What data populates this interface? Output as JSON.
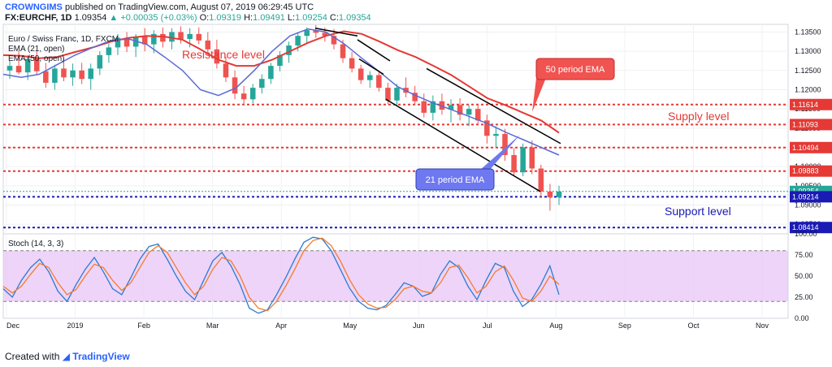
{
  "header": {
    "publisher": "CROWNGIMS",
    "published_text": "published on TradingView.com, August 07, 2019 06:29:45 UTC",
    "symbol": "FX:EURCHF, 1D",
    "last": "1.09354",
    "change": "+0.00035 (+0.03%)",
    "o_label": "O:",
    "open": "1.09319",
    "h_label": "H:",
    "high": "1.09491",
    "l_label": "L:",
    "low": "1.09254",
    "c_label": "C:",
    "close": "1.09354"
  },
  "legend": {
    "line1": "Euro / Swiss Franc, 1D, FXCM",
    "line2": "EMA (21, open)",
    "line3": "EMA (50, open)"
  },
  "annotations": {
    "resistance": "Resistance level",
    "supply": "Supply level",
    "support": "Support level",
    "ema50": "50 period EMA",
    "ema21": "21 period EMA"
  },
  "stoch_label": "Stoch (14, 3, 3)",
  "footer": {
    "created_with": "Created with",
    "brand": "TradingView"
  },
  "colors": {
    "up": "#26a69a",
    "down": "#ef5350",
    "ema21": "#5b6bd5",
    "ema50": "#e53935",
    "resistance": "#e53935",
    "support": "#1a1ab5",
    "stoch_k": "#2a7bd1",
    "stoch_d": "#f57c2c",
    "stoch_band": "#e8c5f7",
    "ema50_callout": "#f05350",
    "ema21_callout": "#6e78f0"
  },
  "chart_data": {
    "type": "candlestick",
    "x_ticks": [
      "Dec",
      "2019",
      "Feb",
      "Mar",
      "Apr",
      "May",
      "Jun",
      "Jul",
      "Aug",
      "Sep",
      "Oct",
      "Nov"
    ],
    "price_axis": {
      "ticks": [
        "1.13500",
        "1.13000",
        "1.12500",
        "1.12000",
        "1.11500",
        "1.11000",
        "1.10500",
        "1.10000",
        "1.09500",
        "1.09000",
        "1.08500"
      ],
      "ylim": [
        1.0825,
        1.137
      ]
    },
    "horizontal_levels": [
      {
        "label": "1.11614",
        "value": 1.11614,
        "kind": "resistance"
      },
      {
        "label": "1.11093",
        "value": 1.11093,
        "kind": "resistance"
      },
      {
        "label": "1.10494",
        "value": 1.10494,
        "kind": "resistance"
      },
      {
        "label": "1.09883",
        "value": 1.09883,
        "kind": "resistance"
      },
      {
        "label": "1.09354",
        "value": 1.09354,
        "kind": "last"
      },
      {
        "label": "1.09214",
        "value": 1.09214,
        "kind": "support"
      },
      {
        "label": "1.08414",
        "value": 1.08414,
        "kind": "support"
      }
    ],
    "ema50": [
      1.129,
      1.1288,
      1.1282,
      1.1285,
      1.1298,
      1.131,
      1.1325,
      1.1335,
      1.134,
      1.1338,
      1.133,
      1.1305,
      1.1278,
      1.1262,
      1.1262,
      1.1278,
      1.13,
      1.1322,
      1.134,
      1.1352,
      1.1345,
      1.1325,
      1.1303,
      1.1285,
      1.1262,
      1.1238,
      1.1208,
      1.1178,
      1.116,
      1.114,
      1.112,
      1.1088
    ],
    "ema21": [
      1.124,
      1.1232,
      1.124,
      1.1265,
      1.129,
      1.131,
      1.1328,
      1.1332,
      1.1318,
      1.1285,
      1.125,
      1.12,
      1.1185,
      1.1205,
      1.125,
      1.13,
      1.134,
      1.1358,
      1.135,
      1.132,
      1.1282,
      1.1246,
      1.1208,
      1.1185,
      1.1165,
      1.1148,
      1.113,
      1.1112,
      1.109,
      1.107,
      1.105,
      1.103
    ],
    "candles": [
      [
        1.125,
        1.1275,
        1.1228,
        1.1262
      ],
      [
        1.1262,
        1.13,
        1.124,
        1.1245
      ],
      [
        1.1245,
        1.129,
        1.1225,
        1.128
      ],
      [
        1.128,
        1.13,
        1.1238,
        1.1248
      ],
      [
        1.1248,
        1.127,
        1.1205,
        1.1218
      ],
      [
        1.1218,
        1.1265,
        1.12,
        1.1255
      ],
      [
        1.1255,
        1.1282,
        1.1222,
        1.1232
      ],
      [
        1.1232,
        1.1268,
        1.121,
        1.125
      ],
      [
        1.125,
        1.127,
        1.1215,
        1.1228
      ],
      [
        1.1228,
        1.1268,
        1.12,
        1.1255
      ],
      [
        1.1255,
        1.13,
        1.1238,
        1.129
      ],
      [
        1.129,
        1.132,
        1.127,
        1.131
      ],
      [
        1.131,
        1.1345,
        1.129,
        1.1335
      ],
      [
        1.1335,
        1.135,
        1.1298,
        1.1312
      ],
      [
        1.1312,
        1.1345,
        1.1285,
        1.1338
      ],
      [
        1.1338,
        1.136,
        1.13,
        1.1318
      ],
      [
        1.1318,
        1.1355,
        1.1295,
        1.1345
      ],
      [
        1.1345,
        1.1362,
        1.131,
        1.1325
      ],
      [
        1.1325,
        1.136,
        1.1305,
        1.135
      ],
      [
        1.135,
        1.1365,
        1.132,
        1.1332
      ],
      [
        1.1332,
        1.136,
        1.131,
        1.1345
      ],
      [
        1.1345,
        1.1362,
        1.1318,
        1.1328
      ],
      [
        1.1328,
        1.135,
        1.1295,
        1.1305
      ],
      [
        1.1305,
        1.133,
        1.1255,
        1.1268
      ],
      [
        1.1268,
        1.1285,
        1.122,
        1.1232
      ],
      [
        1.1232,
        1.125,
        1.1175,
        1.119
      ],
      [
        1.119,
        1.121,
        1.1162,
        1.1175
      ],
      [
        1.1175,
        1.1215,
        1.1165,
        1.1205
      ],
      [
        1.1205,
        1.124,
        1.119,
        1.1228
      ],
      [
        1.1228,
        1.127,
        1.1215,
        1.1262
      ],
      [
        1.1262,
        1.13,
        1.1248,
        1.129
      ],
      [
        1.129,
        1.1325,
        1.127,
        1.1315
      ],
      [
        1.1315,
        1.135,
        1.13,
        1.134
      ],
      [
        1.134,
        1.1362,
        1.1322,
        1.1355
      ],
      [
        1.1355,
        1.1368,
        1.1335,
        1.1348
      ],
      [
        1.1348,
        1.1362,
        1.1325,
        1.134
      ],
      [
        1.134,
        1.1358,
        1.1305,
        1.1318
      ],
      [
        1.1318,
        1.133,
        1.127,
        1.1282
      ],
      [
        1.1282,
        1.1298,
        1.1245,
        1.1255
      ],
      [
        1.1255,
        1.1265,
        1.1215,
        1.1225
      ],
      [
        1.1225,
        1.1248,
        1.1205,
        1.1238
      ],
      [
        1.1238,
        1.125,
        1.1195,
        1.1205
      ],
      [
        1.1205,
        1.1218,
        1.1162,
        1.1172
      ],
      [
        1.1172,
        1.1215,
        1.116,
        1.1205
      ],
      [
        1.1205,
        1.1232,
        1.118,
        1.1192
      ],
      [
        1.1192,
        1.121,
        1.116,
        1.117
      ],
      [
        1.117,
        1.119,
        1.1128,
        1.114
      ],
      [
        1.114,
        1.1185,
        1.112,
        1.117
      ],
      [
        1.117,
        1.119,
        1.1135,
        1.1148
      ],
      [
        1.1148,
        1.1175,
        1.1115,
        1.116
      ],
      [
        1.116,
        1.1178,
        1.112,
        1.1135
      ],
      [
        1.1135,
        1.116,
        1.1105,
        1.115
      ],
      [
        1.115,
        1.1162,
        1.1108,
        1.112
      ],
      [
        1.112,
        1.1135,
        1.106,
        1.108
      ],
      [
        1.108,
        1.1105,
        1.105,
        1.1085
      ],
      [
        1.1085,
        1.1098,
        1.1015,
        1.103
      ],
      [
        1.103,
        1.1048,
        1.0975,
        1.0985
      ],
      [
        1.0985,
        1.106,
        1.0975,
        1.105
      ],
      [
        1.105,
        1.1068,
        1.098,
        1.0995
      ],
      [
        1.0995,
        1.1005,
        1.092,
        1.0935
      ],
      [
        1.0935,
        1.0955,
        1.0885,
        1.092
      ],
      [
        1.092,
        1.095,
        1.09,
        1.0935
      ]
    ],
    "stochastic": {
      "label": "Stoch (14, 3, 3)",
      "ylim": [
        0,
        100
      ],
      "ticks": [
        "100.00",
        "75.00",
        "50.00",
        "25.00",
        "0.00"
      ],
      "k": [
        35,
        25,
        45,
        60,
        70,
        55,
        32,
        20,
        40,
        58,
        72,
        55,
        35,
        28,
        48,
        70,
        85,
        88,
        70,
        50,
        32,
        22,
        45,
        68,
        78,
        62,
        40,
        12,
        6,
        10,
        28,
        48,
        70,
        90,
        96,
        94,
        80,
        58,
        36,
        20,
        12,
        10,
        15,
        28,
        42,
        38,
        26,
        30,
        52,
        68,
        60,
        38,
        22,
        45,
        65,
        60,
        32,
        14,
        22,
        40,
        62,
        28
      ],
      "d": [
        38,
        30,
        38,
        52,
        65,
        60,
        42,
        28,
        34,
        50,
        64,
        60,
        45,
        33,
        42,
        60,
        78,
        86,
        78,
        60,
        42,
        28,
        38,
        58,
        72,
        68,
        50,
        25,
        12,
        9,
        20,
        38,
        58,
        80,
        92,
        95,
        86,
        68,
        46,
        28,
        17,
        12,
        13,
        22,
        35,
        38,
        32,
        30,
        42,
        60,
        63,
        48,
        30,
        38,
        55,
        62,
        45,
        24,
        20,
        32,
        50,
        40
      ],
      "overbought": 80,
      "oversold": 20
    }
  }
}
